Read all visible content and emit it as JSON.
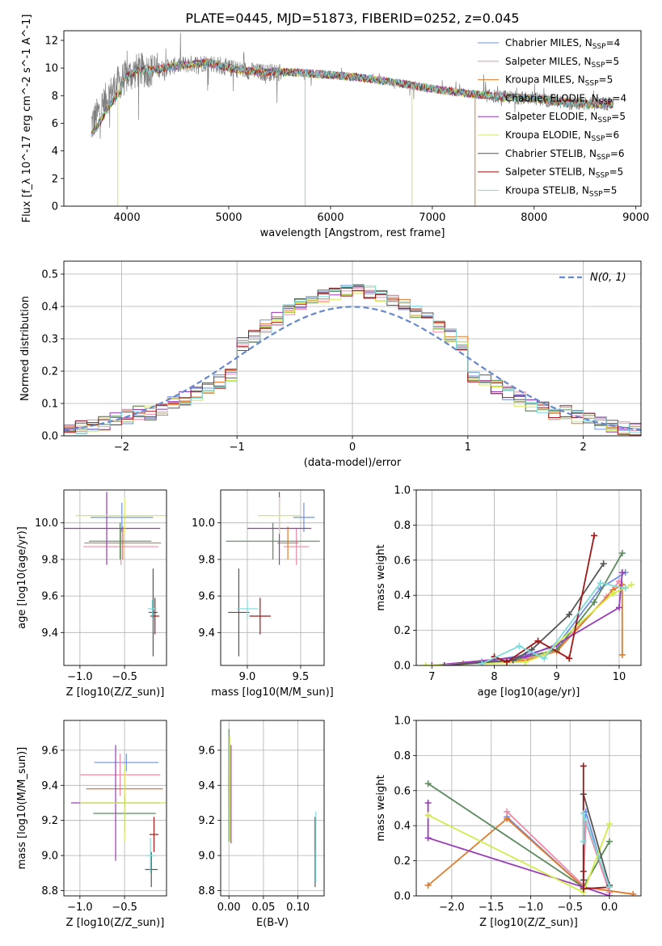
{
  "suptitle": "PLATE=0445, MJD=51873, FIBERID=0252, z=0.045",
  "colors": {
    "chabrier_miles": "#6f8fe8",
    "salpeter_miles": "#f08aa8",
    "kroupa_miles": "#e07a2a",
    "chabrier_elodie": "#5a8a5a",
    "salpeter_elodie": "#9a3ab8",
    "kroupa_elodie": "#d2ec4c",
    "chabrier_stelib": "#555555",
    "salpeter_stelib": "#a01818",
    "kroupa_stelib": "#7fdada",
    "data": "#808080",
    "normal": "#6688cc"
  },
  "legend_main": [
    {
      "name": "Chabrier MILES",
      "nssp": "4",
      "color": "#6f8fe8"
    },
    {
      "name": "Salpeter MILES",
      "nssp": "5",
      "color": "#f08aa8"
    },
    {
      "name": "Kroupa MILES",
      "nssp": "5",
      "color": "#e07a2a"
    },
    {
      "name": "Chabrier ELODIE",
      "nssp": "4",
      "color": "#5a8a5a"
    },
    {
      "name": "Salpeter ELODIE",
      "nssp": "5",
      "color": "#9a3ab8"
    },
    {
      "name": "Kroupa ELODIE",
      "nssp": "6",
      "color": "#d2ec4c"
    },
    {
      "name": "Chabrier STELIB",
      "nssp": "6",
      "color": "#555555"
    },
    {
      "name": "Salpeter STELIB",
      "nssp": "5",
      "color": "#a01818"
    },
    {
      "name": "Kroupa STELIB",
      "nssp": "5",
      "color": "#7fdada"
    }
  ],
  "legend_hist": {
    "label": "N(0, 1)"
  },
  "chart_data": [
    {
      "id": "spectrum",
      "type": "line",
      "xlabel": "wavelength [Angstrom, rest frame]",
      "ylabel": "Flux [f_λ 10^-17 erg cm^-2 s^-1 A^-1]",
      "xlim": [
        3380,
        9050
      ],
      "ylim": [
        0,
        12.7
      ],
      "xticks": [
        4000,
        5000,
        6000,
        7000,
        8000,
        9000
      ],
      "yticks": [
        0,
        2,
        4,
        6,
        8,
        10,
        12
      ],
      "grid": false,
      "legend_position": "right",
      "data_range": [
        3650,
        8780
      ],
      "continuum_points": [
        [
          3650,
          6.0
        ],
        [
          3700,
          6.5
        ],
        [
          3800,
          7.8
        ],
        [
          3900,
          8.8
        ],
        [
          4000,
          9.4
        ],
        [
          4100,
          9.8
        ],
        [
          4300,
          9.9
        ],
        [
          4500,
          10.2
        ],
        [
          4800,
          10.4
        ],
        [
          5000,
          10.0
        ],
        [
          5300,
          9.7
        ],
        [
          5600,
          9.7
        ],
        [
          6000,
          9.5
        ],
        [
          6300,
          9.3
        ],
        [
          6600,
          9.0
        ],
        [
          7000,
          8.5
        ],
        [
          7400,
          8.1
        ],
        [
          7700,
          7.9
        ],
        [
          8000,
          7.8
        ],
        [
          8400,
          7.4
        ],
        [
          8780,
          7.4
        ]
      ]
    },
    {
      "id": "residual-histogram",
      "type": "bar",
      "xlabel": "(data-model)/error",
      "ylabel": "Normed distribution",
      "xlim": [
        -2.5,
        2.5
      ],
      "ylim": [
        0,
        0.54
      ],
      "xticks": [
        -2,
        -1,
        0,
        1,
        2
      ],
      "yticks": [
        0.0,
        0.1,
        0.2,
        0.3,
        0.4,
        0.5
      ],
      "grid": true,
      "legend_position": "upper right",
      "bin_width": 0.1,
      "normal_curve": {
        "mean": 0,
        "sigma": 1
      }
    },
    {
      "id": "age-vs-z",
      "type": "scatter",
      "xlabel": "Z [log10(Z/Z_sun)]",
      "ylabel": "age [log10(age/yr)]",
      "xlim": [
        -1.18,
        -0.03
      ],
      "ylim": [
        9.22,
        10.18
      ],
      "xticks": [
        -1.0,
        -0.5
      ],
      "yticks": [
        9.4,
        9.6,
        9.8,
        10.0
      ],
      "grid": true,
      "points": [
        {
          "series": "chabrier_miles",
          "x": -0.53,
          "y": 10.03,
          "xerr": 0.35,
          "yerr": 0.08
        },
        {
          "series": "salpeter_miles",
          "x": -0.54,
          "y": 9.87,
          "xerr": 0.42,
          "yerr": 0.1
        },
        {
          "series": "kroupa_miles",
          "x": -0.52,
          "y": 9.89,
          "xerr": 0.43,
          "yerr": 0.09
        },
        {
          "series": "chabrier_elodie",
          "x": -0.55,
          "y": 9.9,
          "xerr": 0.35,
          "yerr": 0.1
        },
        {
          "series": "salpeter_elodie",
          "x": -0.7,
          "y": 9.97,
          "xerr": 0.6,
          "yerr": 0.2
        },
        {
          "series": "kroupa_elodie",
          "x": -0.5,
          "y": 10.04,
          "xerr": 0.55,
          "yerr": 0.1
        },
        {
          "series": "chabrier_stelib",
          "x": -0.18,
          "y": 9.51,
          "xerr": 0.05,
          "yerr": 0.24
        },
        {
          "series": "salpeter_stelib",
          "x": -0.16,
          "y": 9.49,
          "xerr": 0.05,
          "yerr": 0.1
        },
        {
          "series": "kroupa_stelib",
          "x": -0.19,
          "y": 9.53,
          "xerr": 0.05,
          "yerr": 0.05
        }
      ]
    },
    {
      "id": "age-vs-mass",
      "type": "scatter",
      "xlabel": "mass [log10(M/M_sun)]",
      "ylabel": "",
      "xlim": [
        8.75,
        9.72
      ],
      "ylim": [
        9.22,
        10.18
      ],
      "xticks": [
        9.0,
        9.5
      ],
      "yticks": [
        9.4,
        9.6,
        9.8,
        10.0
      ],
      "grid": true,
      "points": [
        {
          "series": "chabrier_miles",
          "x": 9.53,
          "y": 10.03,
          "xerr": 0.1,
          "yerr": 0.08
        },
        {
          "series": "salpeter_miles",
          "x": 9.46,
          "y": 9.87,
          "xerr": 0.12,
          "yerr": 0.1
        },
        {
          "series": "kroupa_miles",
          "x": 9.38,
          "y": 9.89,
          "xerr": 0.1,
          "yerr": 0.09
        },
        {
          "series": "chabrier_elodie",
          "x": 9.24,
          "y": 9.9,
          "xerr": 0.44,
          "yerr": 0.1
        },
        {
          "series": "salpeter_elodie",
          "x": 9.3,
          "y": 9.97,
          "xerr": 0.3,
          "yerr": 0.2
        },
        {
          "series": "kroupa_elodie",
          "x": 9.3,
          "y": 10.04,
          "xerr": 0.2,
          "yerr": 0.1
        },
        {
          "series": "chabrier_stelib",
          "x": 8.92,
          "y": 9.51,
          "xerr": 0.1,
          "yerr": 0.24
        },
        {
          "series": "salpeter_stelib",
          "x": 9.12,
          "y": 9.49,
          "xerr": 0.1,
          "yerr": 0.1
        },
        {
          "series": "kroupa_stelib",
          "x": 9.0,
          "y": 9.53,
          "xerr": 0.1,
          "yerr": 0.05
        }
      ]
    },
    {
      "id": "mass-weight-vs-age",
      "type": "line",
      "xlabel": "age [log10(age/yr)]",
      "ylabel": "mass weight",
      "xlim": [
        6.75,
        10.35
      ],
      "ylim": [
        0,
        1.0
      ],
      "xticks": [
        7,
        8,
        9,
        10
      ],
      "yticks": [
        0.0,
        0.2,
        0.4,
        0.6,
        0.8,
        1.0
      ],
      "grid": true,
      "series": [
        {
          "name": "chabrier_miles",
          "x": [
            7.8,
            8.5,
            9.0,
            9.7,
            10.1
          ],
          "y": [
            0.02,
            0.06,
            0.11,
            0.44,
            0.53
          ]
        },
        {
          "name": "salpeter_miles",
          "x": [
            7.8,
            8.5,
            9.0,
            9.8,
            10.0
          ],
          "y": [
            0.01,
            0.04,
            0.09,
            0.39,
            0.48
          ]
        },
        {
          "name": "kroupa_miles",
          "x": [
            7.5,
            8.5,
            9.0,
            9.9,
            10.05,
            10.05
          ],
          "y": [
            0.01,
            0.03,
            0.08,
            0.43,
            0.46,
            0.06
          ]
        },
        {
          "name": "chabrier_elodie",
          "x": [
            7.0,
            8.3,
            9.0,
            9.6,
            10.05
          ],
          "y": [
            0.0,
            0.03,
            0.09,
            0.36,
            0.64
          ]
        },
        {
          "name": "salpeter_elodie",
          "x": [
            7.0,
            8.5,
            9.0,
            10.0,
            10.05
          ],
          "y": [
            0.0,
            0.05,
            0.12,
            0.33,
            0.53
          ]
        },
        {
          "name": "kroupa_elodie",
          "x": [
            6.9,
            8.5,
            8.8,
            9.9,
            10.2
          ],
          "y": [
            0.0,
            0.02,
            0.06,
            0.41,
            0.46
          ]
        },
        {
          "name": "chabrier_stelib",
          "x": [
            7.2,
            8.3,
            8.6,
            9.2,
            9.75
          ],
          "y": [
            0.0,
            0.03,
            0.09,
            0.29,
            0.58
          ]
        },
        {
          "name": "salpeter_stelib",
          "x": [
            8.0,
            8.2,
            8.7,
            9.2,
            9.6
          ],
          "y": [
            0.05,
            0.02,
            0.14,
            0.04,
            0.74
          ]
        },
        {
          "name": "kroupa_stelib",
          "x": [
            7.8,
            8.4,
            8.8,
            9.7,
            10.1
          ],
          "y": [
            0.01,
            0.11,
            0.04,
            0.47,
            0.44
          ]
        }
      ]
    },
    {
      "id": "mass-vs-z",
      "type": "scatter",
      "xlabel": "Z [log10(Z/Z_sun)]",
      "ylabel": "mass [log10(M/M_sun)]",
      "xlim": [
        -1.18,
        -0.03
      ],
      "ylim": [
        8.77,
        9.77
      ],
      "xticks": [
        -1.0,
        -0.5
      ],
      "yticks": [
        8.8,
        9.0,
        9.2,
        9.4,
        9.6
      ],
      "grid": true,
      "points": [
        {
          "series": "chabrier_miles",
          "x": -0.48,
          "y": 9.53,
          "xerr": 0.36,
          "yerr": 0.05
        },
        {
          "series": "salpeter_miles",
          "x": -0.55,
          "y": 9.46,
          "xerr": 0.45,
          "yerr": 0.12
        },
        {
          "series": "kroupa_miles",
          "x": -0.5,
          "y": 9.38,
          "xerr": 0.43,
          "yerr": 0.1
        },
        {
          "series": "chabrier_elodie",
          "x": -0.5,
          "y": 9.24,
          "xerr": 0.35,
          "yerr": 0.11
        },
        {
          "series": "salpeter_elodie",
          "x": -0.6,
          "y": 9.3,
          "xerr": 0.5,
          "yerr": 0.33
        },
        {
          "series": "kroupa_elodie",
          "x": -0.5,
          "y": 9.3,
          "xerr": 0.5,
          "yerr": 0.22
        },
        {
          "series": "chabrier_stelib",
          "x": -0.2,
          "y": 8.92,
          "xerr": 0.07,
          "yerr": 0.1
        },
        {
          "series": "salpeter_stelib",
          "x": -0.17,
          "y": 9.12,
          "xerr": 0.05,
          "yerr": 0.1
        },
        {
          "series": "kroupa_stelib",
          "x": -0.21,
          "y": 9.0,
          "xerr": 0.05,
          "yerr": 0.1
        }
      ]
    },
    {
      "id": "mass-vs-ebv",
      "type": "scatter",
      "xlabel": "E(B-V)",
      "ylabel": "",
      "xlim": [
        -0.012,
        0.138
      ],
      "ylim": [
        8.77,
        9.77
      ],
      "xticks": [
        0.0,
        0.05,
        0.1
      ],
      "yticks": [
        8.8,
        9.0,
        9.2,
        9.4,
        9.6
      ],
      "grid": true,
      "points": [
        {
          "series": "chabrier_miles",
          "x": 0.0,
          "y": 9.53,
          "xerr": 0.0,
          "yerr": 0.05
        },
        {
          "series": "salpeter_miles",
          "x": 0.0,
          "y": 9.46,
          "xerr": 0.0,
          "yerr": 0.1
        },
        {
          "series": "kroupa_miles",
          "x": 0.0,
          "y": 9.38,
          "xerr": 0.0,
          "yerr": 0.1
        },
        {
          "series": "chabrier_elodie",
          "x": 0.0,
          "y": 9.4,
          "xerr": 0.0,
          "yerr": 0.32
        },
        {
          "series": "salpeter_elodie",
          "x": 0.003,
          "y": 9.35,
          "xerr": 0.0,
          "yerr": 0.28
        },
        {
          "series": "kroupa_elodie",
          "x": 0.001,
          "y": 9.38,
          "xerr": 0.0,
          "yerr": 0.3
        },
        {
          "series": "chabrier_stelib",
          "x": 0.125,
          "y": 8.92,
          "xerr": 0.0,
          "yerr": 0.1
        },
        {
          "series": "salpeter_stelib",
          "x": 0.125,
          "y": 9.12,
          "xerr": 0.0,
          "yerr": 0.1
        },
        {
          "series": "kroupa_stelib",
          "x": 0.126,
          "y": 9.05,
          "xerr": 0.0,
          "yerr": 0.2
        }
      ]
    },
    {
      "id": "mass-weight-vs-z",
      "type": "line",
      "xlabel": "Z [log10(Z/Z_sun)]",
      "ylabel": "mass weight",
      "xlim": [
        -2.45,
        0.4
      ],
      "ylim": [
        0,
        1.0
      ],
      "xticks": [
        -2.0,
        -1.5,
        -1.0,
        -0.5,
        0.0
      ],
      "yticks": [
        0.0,
        0.2,
        0.4,
        0.6,
        0.8,
        1.0
      ],
      "grid": true,
      "series": [
        {
          "name": "chabrier_miles",
          "x": [
            -1.3,
            -0.33,
            -0.3,
            0.0
          ],
          "y": [
            0.45,
            0.05,
            0.48,
            0.02
          ]
        },
        {
          "name": "salpeter_miles",
          "x": [
            -1.3,
            -0.33,
            -0.3,
            0.0
          ],
          "y": [
            0.48,
            0.06,
            0.42,
            0.02
          ]
        },
        {
          "name": "kroupa_miles",
          "x": [
            -2.3,
            -1.3,
            -0.33,
            0.3
          ],
          "y": [
            0.06,
            0.44,
            0.05,
            0.01
          ]
        },
        {
          "name": "chabrier_elodie",
          "x": [
            -2.3,
            -0.33,
            0.0
          ],
          "y": [
            0.64,
            0.05,
            0.31
          ]
        },
        {
          "name": "salpeter_elodie",
          "x": [
            -2.3,
            -2.3,
            -0.33,
            0.0
          ],
          "y": [
            0.53,
            0.33,
            0.05,
            0.0
          ]
        },
        {
          "name": "kroupa_elodie",
          "x": [
            -2.3,
            -0.33,
            0.0
          ],
          "y": [
            0.46,
            0.02,
            0.41
          ]
        },
        {
          "name": "chabrier_stelib",
          "x": [
            -0.33,
            -0.33,
            0.0
          ],
          "y": [
            0.09,
            0.58,
            0.06
          ]
        },
        {
          "name": "salpeter_stelib",
          "x": [
            -0.33,
            -0.33,
            -0.33,
            0.0
          ],
          "y": [
            0.74,
            0.14,
            0.04,
            0.05
          ]
        },
        {
          "name": "kroupa_stelib",
          "x": [
            -0.33,
            -0.33,
            0.0
          ],
          "y": [
            0.31,
            0.47,
            0.05
          ]
        }
      ]
    }
  ]
}
